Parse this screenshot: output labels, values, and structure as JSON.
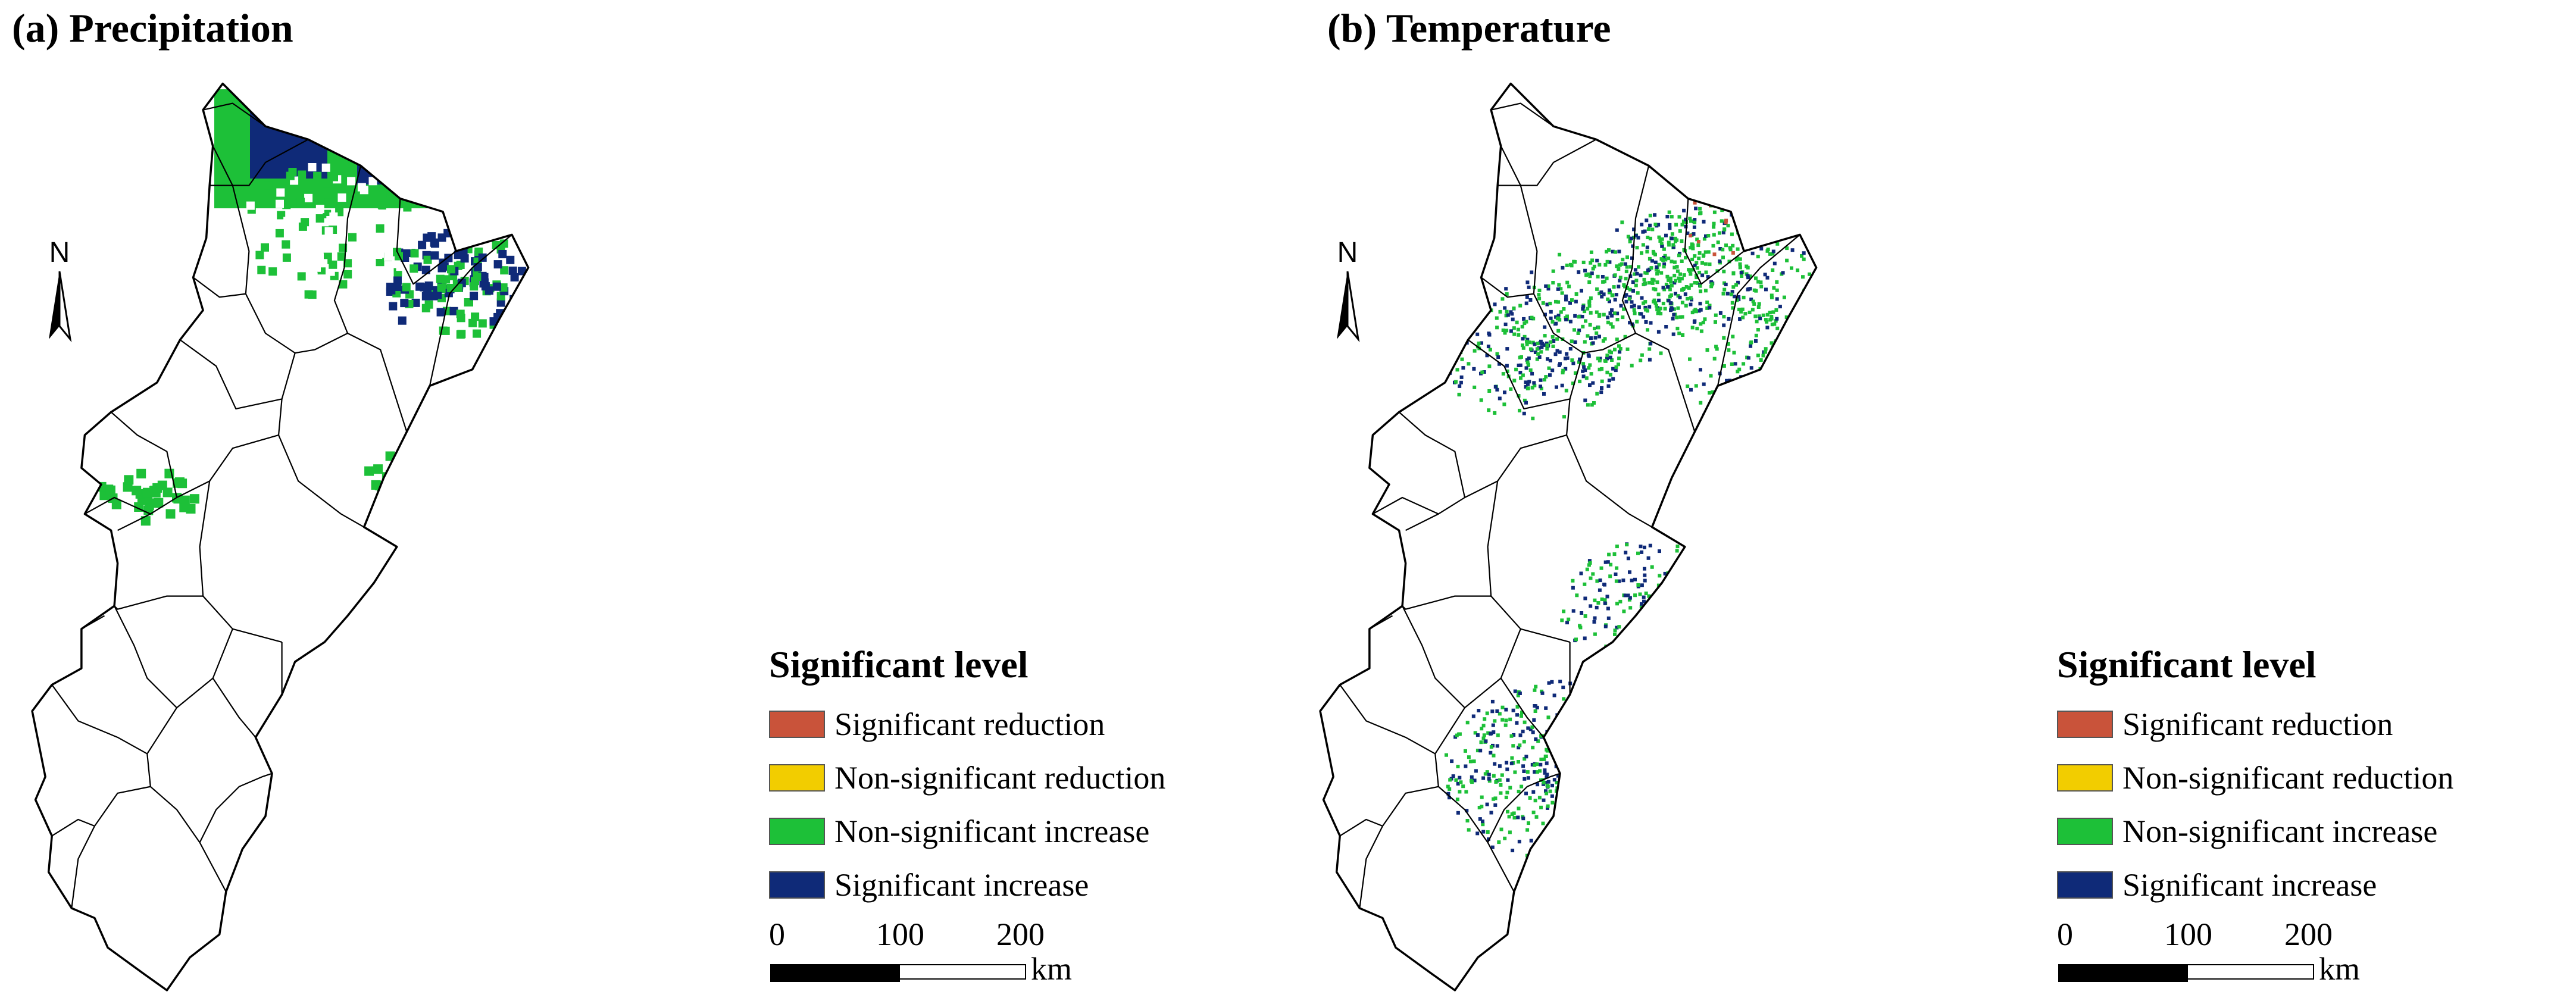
{
  "colors": {
    "significant_reduction": "#C9533A",
    "non_significant_reduction": "#F2CD00",
    "non_significant_increase": "#1DC038",
    "significant_increase": "#0F2A78",
    "boundary": "#000000"
  },
  "panels": [
    {
      "id": "a",
      "title": "(a) Precipitation"
    },
    {
      "id": "b",
      "title": "(b) Temperature"
    }
  ],
  "north_arrow": {
    "label": "N"
  },
  "legend": {
    "title": "Significant level",
    "items": [
      {
        "label": "Significant reduction",
        "color": "#C9533A"
      },
      {
        "label": "Non-significant reduction",
        "color": "#F2CD00"
      },
      {
        "label": "Non-significant increase",
        "color": "#1DC038"
      },
      {
        "label": "Significant increase",
        "color": "#0F2A78"
      }
    ]
  },
  "scale_bar": {
    "ticks": [
      "0",
      "100",
      "200"
    ],
    "unit": "km"
  }
}
